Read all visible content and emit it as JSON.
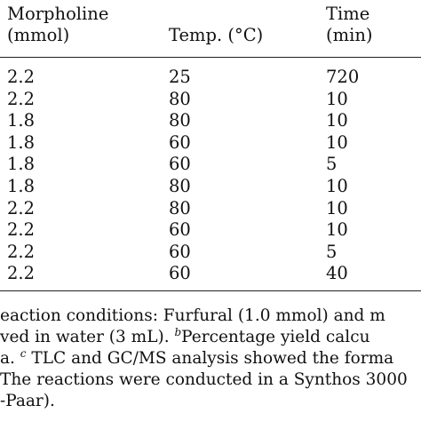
{
  "table": {
    "headers": {
      "morpholine_line1": "Morpholine",
      "morpholine_line2": "(mmol)",
      "temp": "Temp. (°C)",
      "time_line1": "Time",
      "time_line2": "(min)"
    },
    "rows": [
      {
        "morpholine": "2.2",
        "temp": "25",
        "time": "720"
      },
      {
        "morpholine": "2.2",
        "temp": "80",
        "time": "10"
      },
      {
        "morpholine": "1.8",
        "temp": "80",
        "time": "10"
      },
      {
        "morpholine": "1.8",
        "temp": "60",
        "time": "10"
      },
      {
        "morpholine": "1.8",
        "temp": "60",
        "time": "5"
      },
      {
        "morpholine": "1.8",
        "temp": "80",
        "time": "10"
      },
      {
        "morpholine": "2.2",
        "temp": "80",
        "time": "10"
      },
      {
        "morpholine": "2.2",
        "temp": "60",
        "time": "10"
      },
      {
        "morpholine": "2.2",
        "temp": "60",
        "time": "5"
      },
      {
        "morpholine": "2.2",
        "temp": "60",
        "time": "40"
      }
    ]
  },
  "footnotes": {
    "line1": "eaction conditions: Furfural (1.0 mmol) and m",
    "line2_a": "ved in water (3 mL). ",
    "line2_sup": "b",
    "line2_b": "Percentage yield calcu",
    "line3_a": "a. ",
    "line3_sup": "c",
    "line3_b": " TLC and GC/MS analysis showed the forma",
    "line4": "The reactions were conducted in a Synthos 3000",
    "line5": "-Paar)."
  }
}
